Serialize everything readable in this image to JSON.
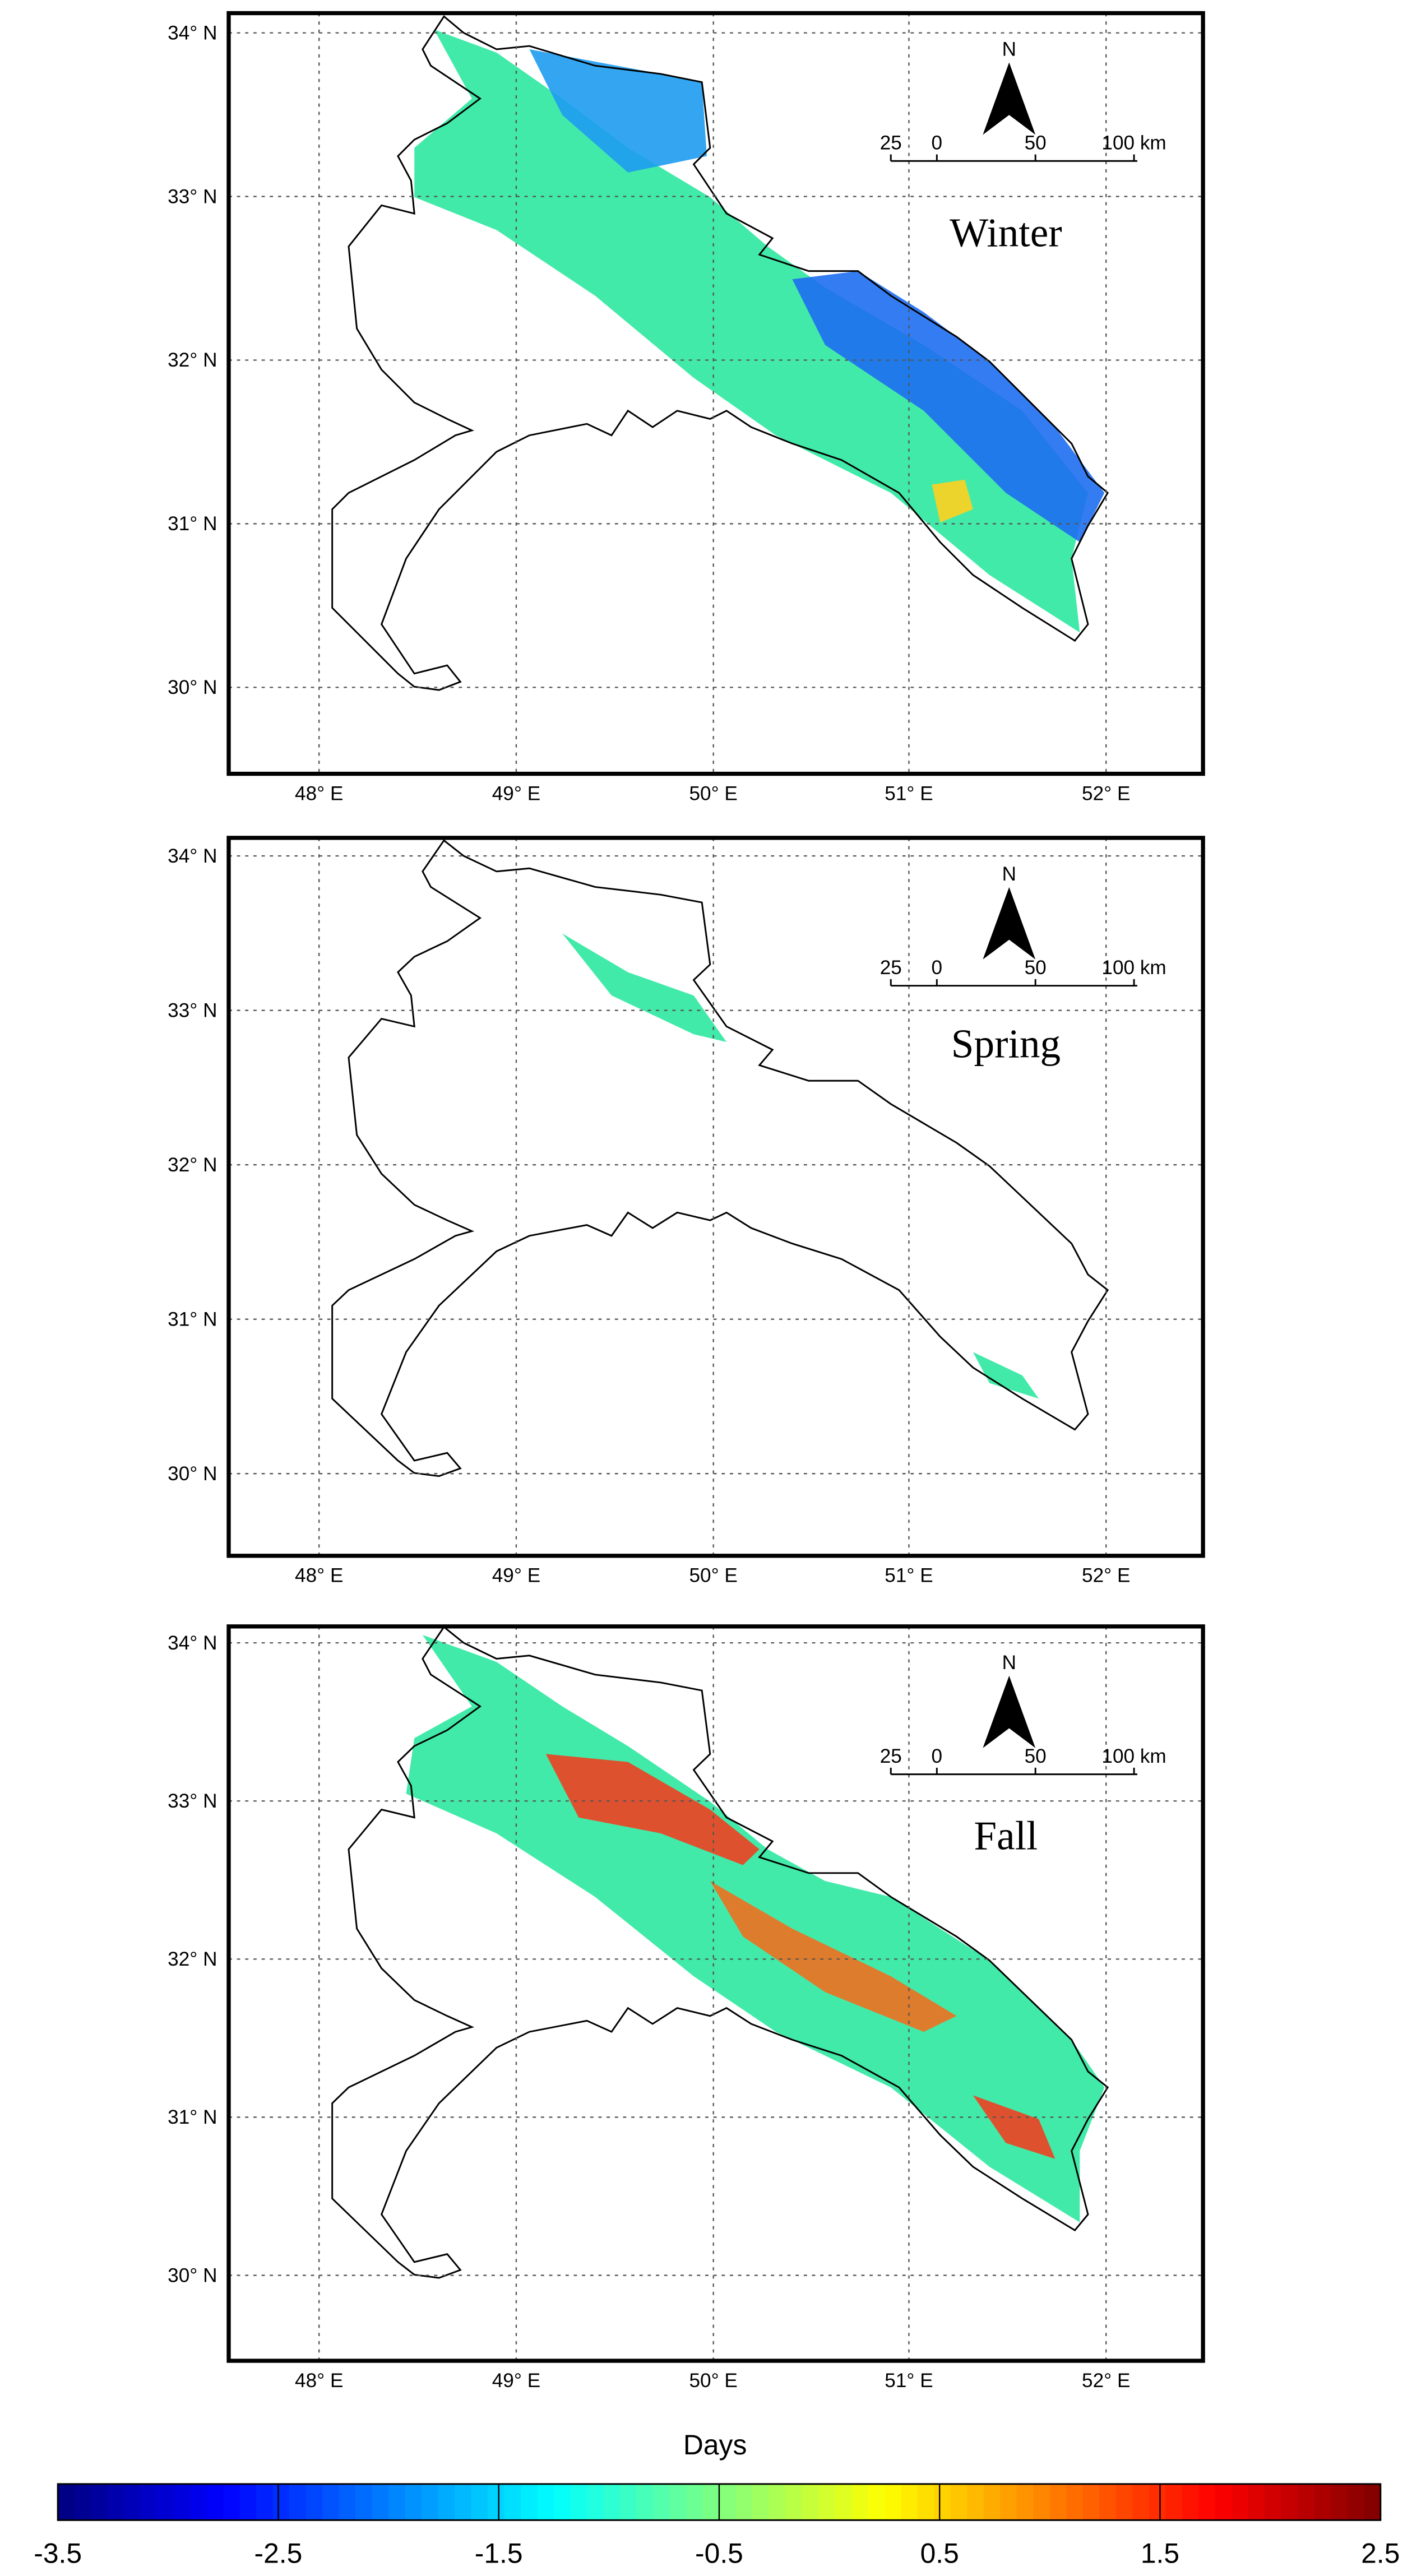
{
  "panels": [
    {
      "label": "Winter"
    },
    {
      "label": "Spring"
    },
    {
      "label": "Fall"
    }
  ],
  "lat_ticks": [
    "34° N",
    "33° N",
    "32° N",
    "31° N",
    "30° N"
  ],
  "lon_ticks": [
    "48° E",
    "49° E",
    "50° E",
    "51° E",
    "52° E"
  ],
  "north": "N",
  "scale_bar": [
    "25",
    "0",
    "50",
    "100 km"
  ],
  "colorbar": {
    "title": "Days",
    "min": -3.5,
    "max": 2.5,
    "ticks": [
      -3.5,
      -2.5,
      -1.5,
      -0.5,
      0.5,
      1.5,
      2.5
    ]
  }
}
